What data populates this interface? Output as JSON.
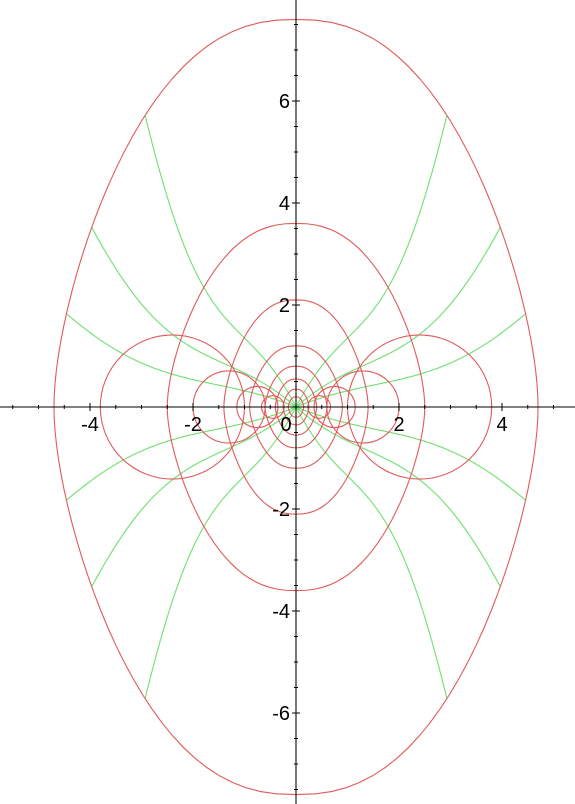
{
  "chart_data": {
    "type": "line",
    "title": "",
    "xlabel": "",
    "ylabel": "",
    "xlim": [
      -5.8,
      5.6
    ],
    "ylim": [
      -7.8,
      8.0
    ],
    "grid": false,
    "legend": "none",
    "x_ticks": [
      -4,
      -2,
      0,
      2,
      4
    ],
    "x_tick_labels": [
      "-4",
      "-2",
      "0",
      "2",
      "4"
    ],
    "y_ticks": [
      -6,
      -4,
      -2,
      2,
      4,
      6
    ],
    "y_tick_labels": [
      "-6",
      "-4",
      "-2",
      "2",
      "4",
      "6"
    ],
    "colors": {
      "red_family": "#e05a5a",
      "green_family": "#6fe06f",
      "axes": "#000000"
    },
    "series": [
      {
        "color": "red_family",
        "description_values": "coordinate lines u = const of a conformal map: curves with x-intercept a and peak height b",
        "curves": [
          {
            "a": 4.7,
            "b": 7.6
          },
          {
            "a": 2.5,
            "b": 3.6
          },
          {
            "a": 1.4,
            "b": 2.1
          },
          {
            "a": 0.9,
            "b": 1.2
          },
          {
            "a": 0.6,
            "b": 0.8
          },
          {
            "a": 0.4,
            "b": 0.55
          },
          {
            "a": 0.25,
            "b": 0.35
          },
          {
            "a": 0.15,
            "b": 0.2
          }
        ],
        "loops": [
          {
            "cx": 2.4,
            "r": 1.4
          },
          {
            "cx": 1.3,
            "r": 0.7
          },
          {
            "cx": 0.75,
            "r": 0.4
          },
          {
            "cx": 0.45,
            "r": 0.22
          }
        ]
      },
      {
        "color": "green_family",
        "description_values": "orthogonal coordinate lines v = const: arcs from origin region to outer ring at angle (degrees)",
        "angles_deg": [
          20,
          35,
          55,
          90,
          125,
          145,
          160,
          200,
          215,
          235,
          270,
          305,
          325,
          340
        ]
      }
    ]
  }
}
